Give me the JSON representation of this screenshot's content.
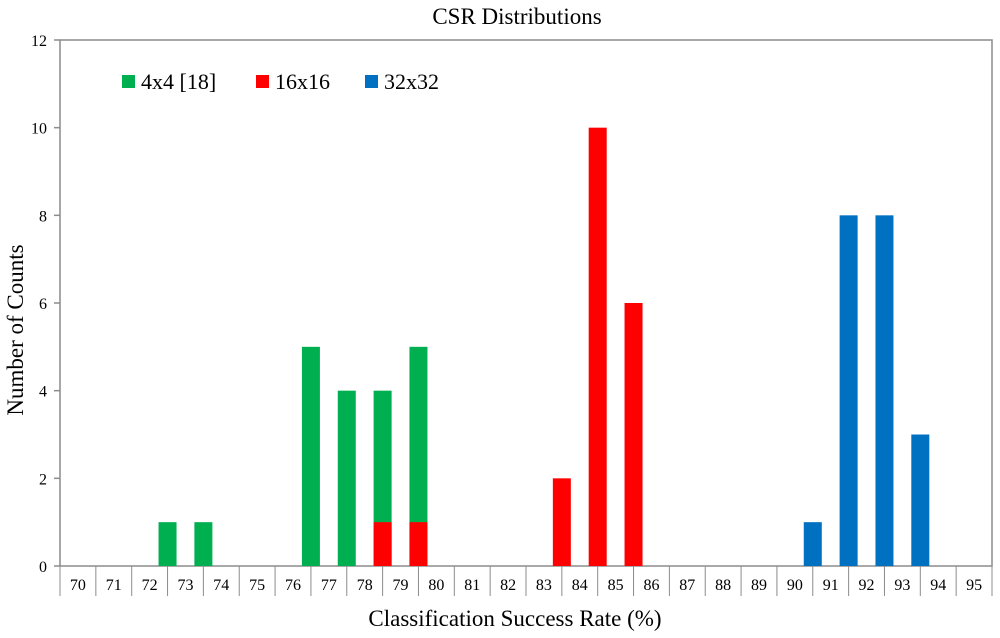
{
  "chart_data": {
    "type": "bar",
    "title": "CSR Distributions",
    "xlabel": "Classification Success Rate (%)",
    "ylabel": "Number of Counts",
    "ylim": [
      0,
      12
    ],
    "yticks": [
      "0",
      "2",
      "4",
      "6",
      "8",
      "10",
      "12"
    ],
    "categories": [
      "70",
      "71",
      "72",
      "73",
      "74",
      "75",
      "76",
      "77",
      "78",
      "79",
      "80",
      "81",
      "82",
      "83",
      "84",
      "85",
      "86",
      "87",
      "88",
      "89",
      "90",
      "91",
      "92",
      "93",
      "94",
      "95"
    ],
    "series": [
      {
        "name": "4x4 [18]",
        "color": "#00b050",
        "values": [
          0,
          0,
          1,
          1,
          0,
          0,
          5,
          4,
          4,
          5,
          0,
          0,
          0,
          0,
          0,
          0,
          0,
          0,
          0,
          0,
          0,
          0,
          0,
          0,
          0,
          0
        ]
      },
      {
        "name": "16x16",
        "color": "#ff0000",
        "values": [
          0,
          0,
          0,
          0,
          0,
          0,
          0,
          0,
          1,
          1,
          0,
          0,
          0,
          2,
          10,
          6,
          0,
          0,
          0,
          0,
          0,
          0,
          0,
          0,
          0,
          0
        ]
      },
      {
        "name": "32x32",
        "color": "#0070c0",
        "values": [
          0,
          0,
          0,
          0,
          0,
          0,
          0,
          0,
          0,
          0,
          0,
          0,
          0,
          0,
          0,
          0,
          0,
          0,
          0,
          0,
          1,
          8,
          8,
          3,
          0,
          0
        ]
      }
    ],
    "legend_position": "top-left",
    "grid": false
  }
}
